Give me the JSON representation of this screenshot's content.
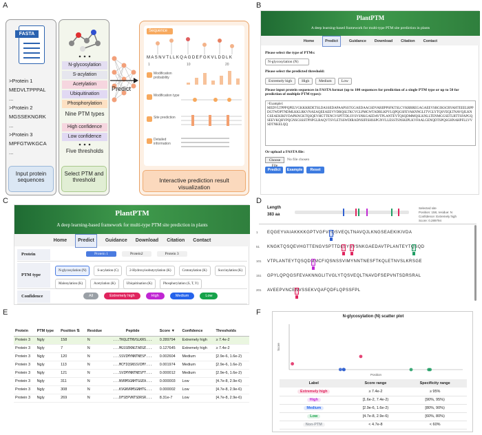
{
  "panel_labels": {
    "a": "A",
    "b": "B",
    "c": "C",
    "d": "D",
    "e": "E",
    "f": "F"
  },
  "panel_a": {
    "fasta_title": "FASTA",
    "proteins": [
      ">Protein 1",
      "MEDVLTPPPAL",
      "...",
      ">Protein 2",
      "MGSSEKNGRK",
      "...",
      ">Protein 3",
      "MPFGTWKGCA",
      "..."
    ],
    "ptm_types": [
      "N-glycosylation",
      "S-acylation",
      "Acetylation",
      "Ubiquitination",
      "Phosphorylation"
    ],
    "ptm_caption": "Nine PTM types",
    "thresholds": [
      "High confidence",
      "Low confidence"
    ],
    "threshold_caption": "Five thresholds",
    "input_caption": "Input protein sequences",
    "select_caption": "Select PTM and threshold",
    "predict": "Predict",
    "sequence_label": "Sequence",
    "sequence": "MASNVTLLKQAGDEFGKVLDDLK",
    "sequence_ticks": [
      "1",
      "10",
      "20"
    ],
    "result_rows": [
      "Modification probability",
      "Modification type",
      "Site prediction",
      "Detailed information"
    ],
    "result_caption": "Interactive prediction result visualization"
  },
  "panel_b": {
    "site_name": "PlantPTM",
    "tagline": "A deep learning-based framework for multi-type PTM site prediction in plants",
    "nav": [
      "Home",
      "Predict",
      "Guidance",
      "Download",
      "Citation",
      "Contact"
    ],
    "ptm_prompt": "Please select the type of PTMs:",
    "ptm_selected": "N-glycosylation (N)",
    "threshold_prompt": "Please select the predicted threshold:",
    "thresholds": [
      "Extremely high",
      "High",
      "Medium",
      "Low"
    ],
    "sequence_prompt": "Please input protein sequences in FASTA format (up to 100 sequences for prediction of a single PTM type or up to 50 for prediction of multiple PTM types):",
    "sequence_text": ">Example1\nMEDVLTPPPQPELVGKKKRDETSLDASSEDAPAAPSSTGGAEDAAGSDVARIIPPSFKTSLCVKRRREGAGAEEVSRGIKSCRYAHTEEELRPPDGTWDPTNDMLKKLRKVNAEAQEEAEEVVDRQSLTKCVGLPMGWTADRLKPYLQPQGSFEVAKNNGLITVGLYTQSVEQLTNAVQJLKNGSEAEKIKIVDAPKNGKTQSQEVHGTTENGVSPTTDLSYSVSNKGAEDAVTPLANTEYTQSQDMMQSLKNLLTENMGGSETLRTTSFAPGQSEEVKQHYPQGNSGSSSTPNPGLRAQVTSVLETSSWDIRADNSIFISHSSPGNVLLESSTSNSKIPLKVFAALGENQDTSPQSGHNAHPFLLVVSDTNKELQQ"
  },
  "panel_b_form": {
    "upload_prompt": "Or upload a FASTA file:",
    "choose_file": "Choose File",
    "no_file": "No file chosen",
    "buttons": [
      "Predict",
      "Example",
      "Reset"
    ]
  },
  "panel_c": {
    "site_name": "PlantPTM",
    "tagline": "A deep learning-based framework for multi-type PTM site prediction in plants",
    "nav": [
      "Home",
      "Predict",
      "Guidance",
      "Download",
      "Citation",
      "Contact"
    ],
    "protein_label": "Protein",
    "proteins": [
      "Protein 1",
      "Protein2",
      "Protein 3"
    ],
    "ptm_label": "PTM type",
    "ptm_types": [
      "N-glycosylation (N)",
      "S-acylation (C)",
      "2-Hydroxyisobutyrylation (K)",
      "Crotonylation (K)",
      "Succinylation (K)",
      "Malonylation (K)",
      "Acetylation (K)",
      "Ubiquitination (K)",
      "Phosphorylation (S, T, Y)"
    ],
    "confidence_label": "Confidence",
    "confidence": [
      "All",
      "Extremely high",
      "High",
      "Medium",
      "Low"
    ]
  },
  "panel_d": {
    "length_label": "Length",
    "length": "383 aa",
    "info": [
      "Selected site",
      "Position: 158, residue: N",
      "Confidence: Extremely high",
      "Score: 0.289794"
    ],
    "rows": [
      {
        "start": "1",
        "sequence": "EQGEYVAIAKKKKGPTVGFVFQSVEQLTNAVQJLKNGSEAEKIKIVDA"
      },
      {
        "start": "51",
        "sequence": "KNGKTQSQEVHGTTENGVSPTTDLSYSVSNKGAEDAVTPLANTEYTQSQD"
      },
      {
        "start": "101",
        "sequence": "VTPLANTEYTQSQDMMCFIQSNSSVIMYNNTNESFTKQLETNVSLKRSGE"
      },
      {
        "start": "151",
        "sequence": "GPYLQPQGSFEVAKNNGLITVGLYTQSVEQLTNAVDFSEPVNTSDRSRAL"
      },
      {
        "start": "201",
        "sequence": "AVEEPVNCENVSSEKVQAFQDFLQPSSFPL"
      }
    ]
  },
  "panel_e": {
    "columns": [
      "Protein",
      "PTM type",
      "Position ⇅",
      "Residue",
      "Peptide",
      "Score ▼",
      "Confidence",
      "Thresholds"
    ],
    "rows": [
      [
        "Protein 3",
        "Ngly",
        "158",
        "N",
        "...TKQLETNVSLKRS...",
        "0.289794",
        "Extremely high",
        "≥ 7.4e-2"
      ],
      [
        "Protein 3",
        "Ngly",
        "7",
        "N",
        "...MGSSEKNGTAEGE...",
        "0.127645",
        "Extremely high",
        "≥ 7.4e-2"
      ],
      [
        "Protein 3",
        "Ngly",
        "120",
        "N",
        "...SSVIMYNNTNESF...",
        "0.002604",
        "Medium",
        "[2.9e-6, 1.6e-2)"
      ],
      [
        "Protein 3",
        "Ngly",
        "113",
        "N",
        "...MCFIQSNSSVIMY...",
        "0.001974",
        "Medium",
        "[2.9e-6, 1.6e-2)"
      ],
      [
        "Protein 3",
        "Ngly",
        "121",
        "N",
        "...SVIMYNNTNESFT...",
        "0.000012",
        "Medium",
        "[2.9e-6, 1.6e-2)"
      ],
      [
        "Protein 3",
        "Ngly",
        "311",
        "N",
        "...NVRMSGNHTGGEA...",
        "0.000003",
        "Low",
        "[4.7e-8, 2.9e-6)"
      ],
      [
        "Protein 3",
        "Ngly",
        "308",
        "N",
        "...KVGNVRMSGNHTG...",
        "0.000002",
        "Low",
        "[4.7e-8, 2.9e-6)"
      ],
      [
        "Protein 3",
        "Ngly",
        "269",
        "N",
        "...DFSEPVNTSDRSR...",
        "8.31e-7",
        "Low",
        "[4.7e-8, 2.9e-6)"
      ]
    ]
  },
  "chart_data": {
    "type": "scatter",
    "title": "N-glycosylation (N) scatter plot",
    "x_label": "Position",
    "y_label": "Score",
    "xlim": [
      0,
      383
    ],
    "ylim": [
      0,
      1
    ],
    "series": [
      {
        "color": "#e0245e",
        "x": [
          7,
          158
        ],
        "values": [
          0.127645,
          0.289794
        ]
      },
      {
        "color": "#2f5fd0",
        "x": [
          113,
          120,
          121
        ],
        "values": [
          0.001974,
          0.002604,
          1.2e-05
        ]
      },
      {
        "color": "#1f9d63",
        "x": [
          269,
          308,
          311
        ],
        "values": [
          8.31e-07,
          2e-06,
          3e-06
        ]
      }
    ]
  },
  "panel_f_table": {
    "columns": [
      "Label",
      "Score range",
      "Specificity range"
    ],
    "rows": [
      [
        "Extremely high",
        "≥ 7.4e-2",
        "≥ 95%"
      ],
      [
        "High",
        "[1.6e-2, 7.4e-2)",
        "[90%, 95%)"
      ],
      [
        "Medium",
        "[2.9e-6, 1.6e-2)",
        "[80%, 90%)"
      ],
      [
        "Low",
        "[4.7e-8, 2.9e-6)",
        "[60%, 80%)"
      ],
      [
        "Non-PTM",
        "< 4.7e-8",
        "< 60%"
      ]
    ]
  }
}
